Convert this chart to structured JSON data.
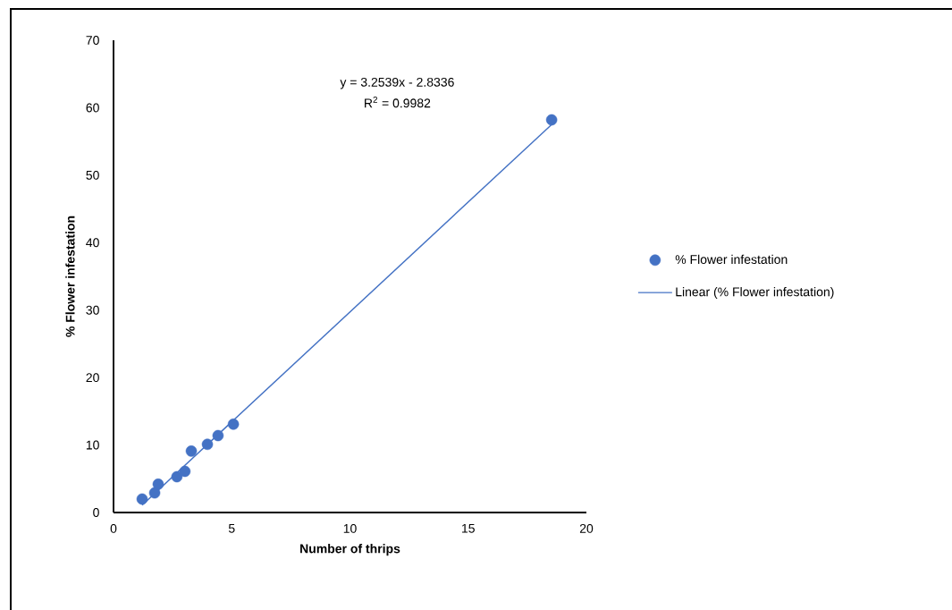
{
  "chart_data": {
    "type": "scatter",
    "xlabel": "Number of thrips",
    "ylabel": "% Flower infestation",
    "annotations": [
      "y = 3.2539x - 2.8336",
      "R$^{2}$ = 0.9982"
    ],
    "series": [
      {
        "name": "% Flower infestation",
        "color": "#4472c4",
        "marker": "circle",
        "x": [
          1.21,
          1.74,
          1.89,
          2.68,
          3.02,
          3.29,
          3.97,
          4.42,
          5.07,
          18.53
        ],
        "values": [
          2.0,
          2.9,
          4.2,
          5.3,
          6.1,
          9.1,
          10.1,
          11.4,
          13.1,
          58.2
        ]
      },
      {
        "name": "Linear (% Flower infestation)",
        "type": "line",
        "color": "#4472c4",
        "line_style": "solid",
        "marker": "none",
        "x": [
          1.21,
          18.53
        ],
        "values": [
          1.1,
          57.5
        ]
      }
    ],
    "xlim": [
      0,
      20
    ],
    "ylim": [
      0,
      70
    ],
    "xticks": [
      0,
      5,
      10,
      15,
      20
    ],
    "yticks": [
      0,
      10,
      20,
      30,
      40,
      50,
      60,
      70
    ],
    "grid": false,
    "legend": "right"
  }
}
